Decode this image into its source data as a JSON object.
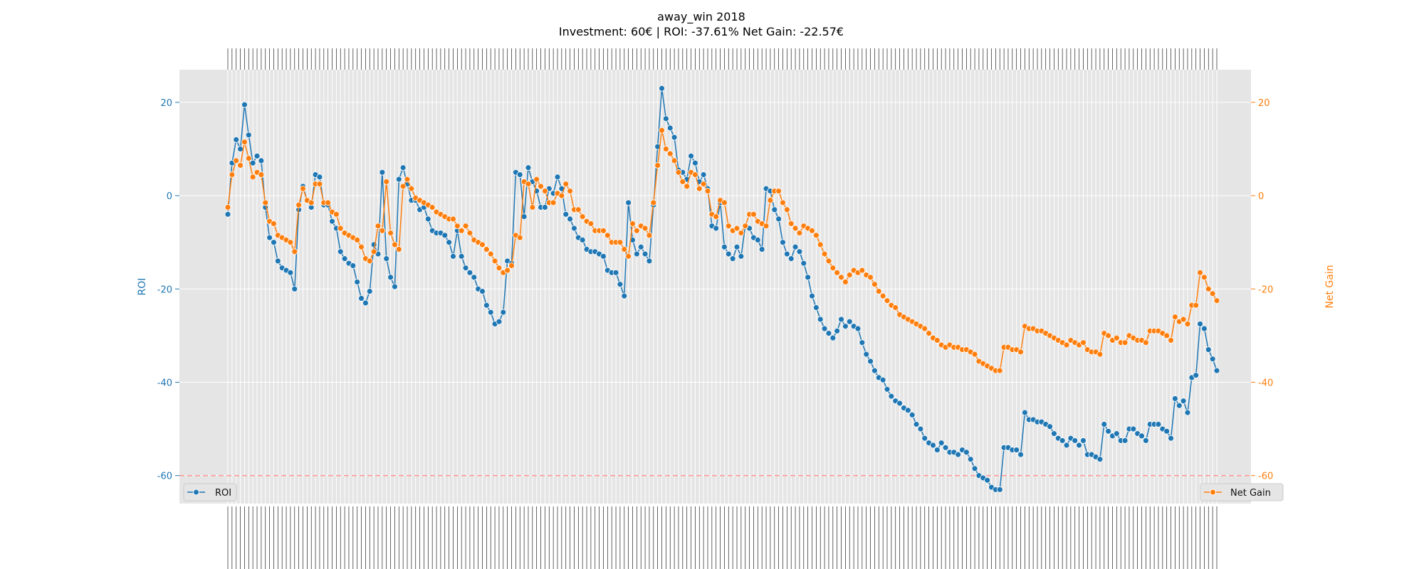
{
  "colors": {
    "roi": "#1f77b4",
    "net_gain": "#ff7f0e",
    "plot_bg": "#e5e5e5",
    "grid": "#ffffff",
    "threshold": "#ff9999"
  },
  "chart_data": {
    "type": "line",
    "title": "away_win 2018",
    "subtitle": "Investment: 60€ | ROI: -37.61% Net Gain: -22.57€",
    "ylabel": "ROI",
    "y2label": "Net Gain",
    "ylim": [
      -66,
      27
    ],
    "y2lim": [
      -66,
      27
    ],
    "yticks": [
      20,
      0,
      -20,
      -40,
      -60
    ],
    "y2ticks": [
      20,
      0,
      -20,
      -40,
      -60
    ],
    "grid": true,
    "threshold_line": -60,
    "legend": [
      {
        "name": "ROI",
        "placement": "bottom-left"
      },
      {
        "name": "Net Gain",
        "placement": "bottom-right"
      }
    ],
    "series": [
      {
        "name": "ROI",
        "axis": "left",
        "values": [
          -4,
          7,
          12,
          10,
          19.5,
          13,
          7,
          8.5,
          7.5,
          -2.5,
          -9,
          -10,
          -14,
          -15.5,
          -16,
          -16.5,
          -20,
          -3,
          2,
          -1,
          -2.5,
          4.5,
          4,
          -2,
          -2,
          -5.5,
          -7,
          -12,
          -13.5,
          -14.5,
          -15,
          -18.5,
          -22,
          -23,
          -20.5,
          -10.5,
          -12.5,
          5,
          -13.5,
          -17.5,
          -19.5,
          3.5,
          6,
          2.5,
          -1,
          -1,
          -3,
          -2.5,
          -5,
          -7.5,
          -8,
          -8,
          -8.5,
          -10,
          -13,
          -7.5,
          -13,
          -15.5,
          -16.5,
          -17.5,
          -20,
          -20.5,
          -23.5,
          -25,
          -27.5,
          -27,
          -25,
          -14,
          -14.5,
          5,
          4.5,
          -4.5,
          6,
          3,
          1,
          -2.5,
          -2.5,
          1.5,
          0.5,
          4,
          1.5,
          -4,
          -5,
          -7,
          -9,
          -9.5,
          -11.5,
          -12,
          -12,
          -12.5,
          -13,
          -16,
          -16.5,
          -16.5,
          -19,
          -21.5,
          -1.5,
          -9.5,
          -12.5,
          -11,
          -12.5,
          -14,
          -2,
          10.5,
          23,
          16.5,
          14.5,
          12.5,
          5.5,
          5,
          3.5,
          8.5,
          7,
          3,
          4.5,
          1.5,
          -6.5,
          -7,
          -1.5,
          -11,
          -12.5,
          -13.5,
          -11,
          -13,
          -6.5,
          -7,
          -9,
          -9.5,
          -11.5,
          1.5,
          1,
          -3,
          -5,
          -10,
          -12.5,
          -13.5,
          -11,
          -12,
          -14.5,
          -17.5,
          -21.5,
          -24,
          -26.5,
          -28.5,
          -29.5,
          -30.5,
          -29,
          -26.5,
          -28,
          -27,
          -28,
          -28.5,
          -31.5,
          -34,
          -35.5,
          -37.5,
          -39,
          -39.5,
          -41.5,
          -43,
          -44,
          -44.5,
          -45.5,
          -46,
          -47,
          -49,
          -50,
          -52,
          -53,
          -53.5,
          -54.5,
          -53,
          -54,
          -55,
          -55,
          -55.5,
          -54.5,
          -55,
          -56.5,
          -58.5,
          -60,
          -60.5,
          -61,
          -62.5,
          -63,
          -63,
          -54,
          -54,
          -54.5,
          -54.5,
          -55.5,
          -46.5,
          -48,
          -48,
          -48.5,
          -48.5,
          -49,
          -49.5,
          -51,
          -52,
          -52.5,
          -53.5,
          -52,
          -52.5,
          -53.5,
          -52.5,
          -55.5,
          -55.5,
          -56,
          -56.5,
          -49,
          -50.5,
          -51.5,
          -51,
          -52.5,
          -52.5,
          -50,
          -50,
          -51,
          -51.5,
          -52.5,
          -49,
          -49,
          -49,
          -50,
          -50.5,
          -52,
          -43.5,
          -45,
          -44,
          -46.5,
          -39,
          -38.5,
          -27.5,
          -28.5,
          -33,
          -35,
          -37.5
        ]
      },
      {
        "name": "Net Gain",
        "axis": "right",
        "values": [
          -2.5,
          4.5,
          7.5,
          6.5,
          11.5,
          8,
          4,
          5,
          4.5,
          -1.5,
          -5.5,
          -6,
          -8.5,
          -9,
          -9.5,
          -10,
          -12,
          -2,
          1.5,
          -1,
          -1.5,
          2.5,
          2.5,
          -1.5,
          -1.5,
          -3.5,
          -4,
          -7,
          -8,
          -8.5,
          -9,
          -9.5,
          -11,
          -13.5,
          -14,
          -12,
          -6.5,
          -7.5,
          3,
          -8,
          -10.5,
          -11.5,
          2,
          3.5,
          1.5,
          -0.5,
          -1,
          -1.5,
          -2,
          -2.5,
          -3.5,
          -4,
          -4.5,
          -5,
          -5,
          -6.5,
          -7.5,
          -6.5,
          -8,
          -9.5,
          -10,
          -10.5,
          -11.5,
          -12.5,
          -14,
          -15.5,
          -16.5,
          -16,
          -15,
          -8.5,
          -9,
          3,
          2.5,
          -2.5,
          3.5,
          2,
          1,
          -1.5,
          -1.5,
          0.5,
          0,
          2.5,
          1,
          -3,
          -3,
          -4.5,
          -5.5,
          -6,
          -7.5,
          -7.5,
          -7.5,
          -8.5,
          -10,
          -10,
          -10,
          -11.5,
          -13,
          -6,
          -7.5,
          -6.5,
          -7,
          -8.5,
          -1.5,
          6.5,
          14,
          10,
          9,
          7.5,
          5,
          3,
          2,
          5,
          4.5,
          1.5,
          2.5,
          1,
          -4,
          -4.5,
          -1,
          -1.5,
          -6.5,
          -7.5,
          -7,
          -8,
          -6.5,
          -4,
          -4,
          -5.5,
          -6,
          -6.5,
          -1,
          1,
          1,
          -1.5,
          -3,
          -6,
          -7,
          -8,
          -6.5,
          -7,
          -7.5,
          -8.5,
          -10.5,
          -12.5,
          -14,
          -15.5,
          -16.5,
          -17.5,
          -18.5,
          -17,
          -16,
          -16.5,
          -16,
          -17,
          -17.5,
          -19,
          -20.5,
          -21.5,
          -22.5,
          -23.5,
          -24,
          -25.5,
          -26,
          -26.5,
          -27,
          -27.5,
          -28,
          -28.5,
          -29.5,
          -30.5,
          -31,
          -32,
          -32.5,
          -32,
          -32.5,
          -32.5,
          -33,
          -33,
          -33.5,
          -34,
          -35.5,
          -36,
          -36.5,
          -37,
          -37.5,
          -37.5,
          -32.5,
          -32.5,
          -33,
          -33,
          -33.5,
          -28,
          -28.5,
          -28.5,
          -29,
          -29,
          -29.5,
          -30,
          -30.5,
          -31,
          -31.5,
          -32,
          -31,
          -31.5,
          -32,
          -31.5,
          -33,
          -33.5,
          -33.5,
          -34,
          -29.5,
          -30,
          -31,
          -30.5,
          -31.5,
          -31.5,
          -30,
          -30.5,
          -31,
          -31,
          -31.5,
          -29,
          -29,
          -29,
          -29.5,
          -30,
          -31,
          -26,
          -27,
          -26.5,
          -27.5,
          -23.5,
          -23.5,
          -16.5,
          -17.5,
          -20,
          -21,
          -22.5
        ]
      }
    ]
  }
}
